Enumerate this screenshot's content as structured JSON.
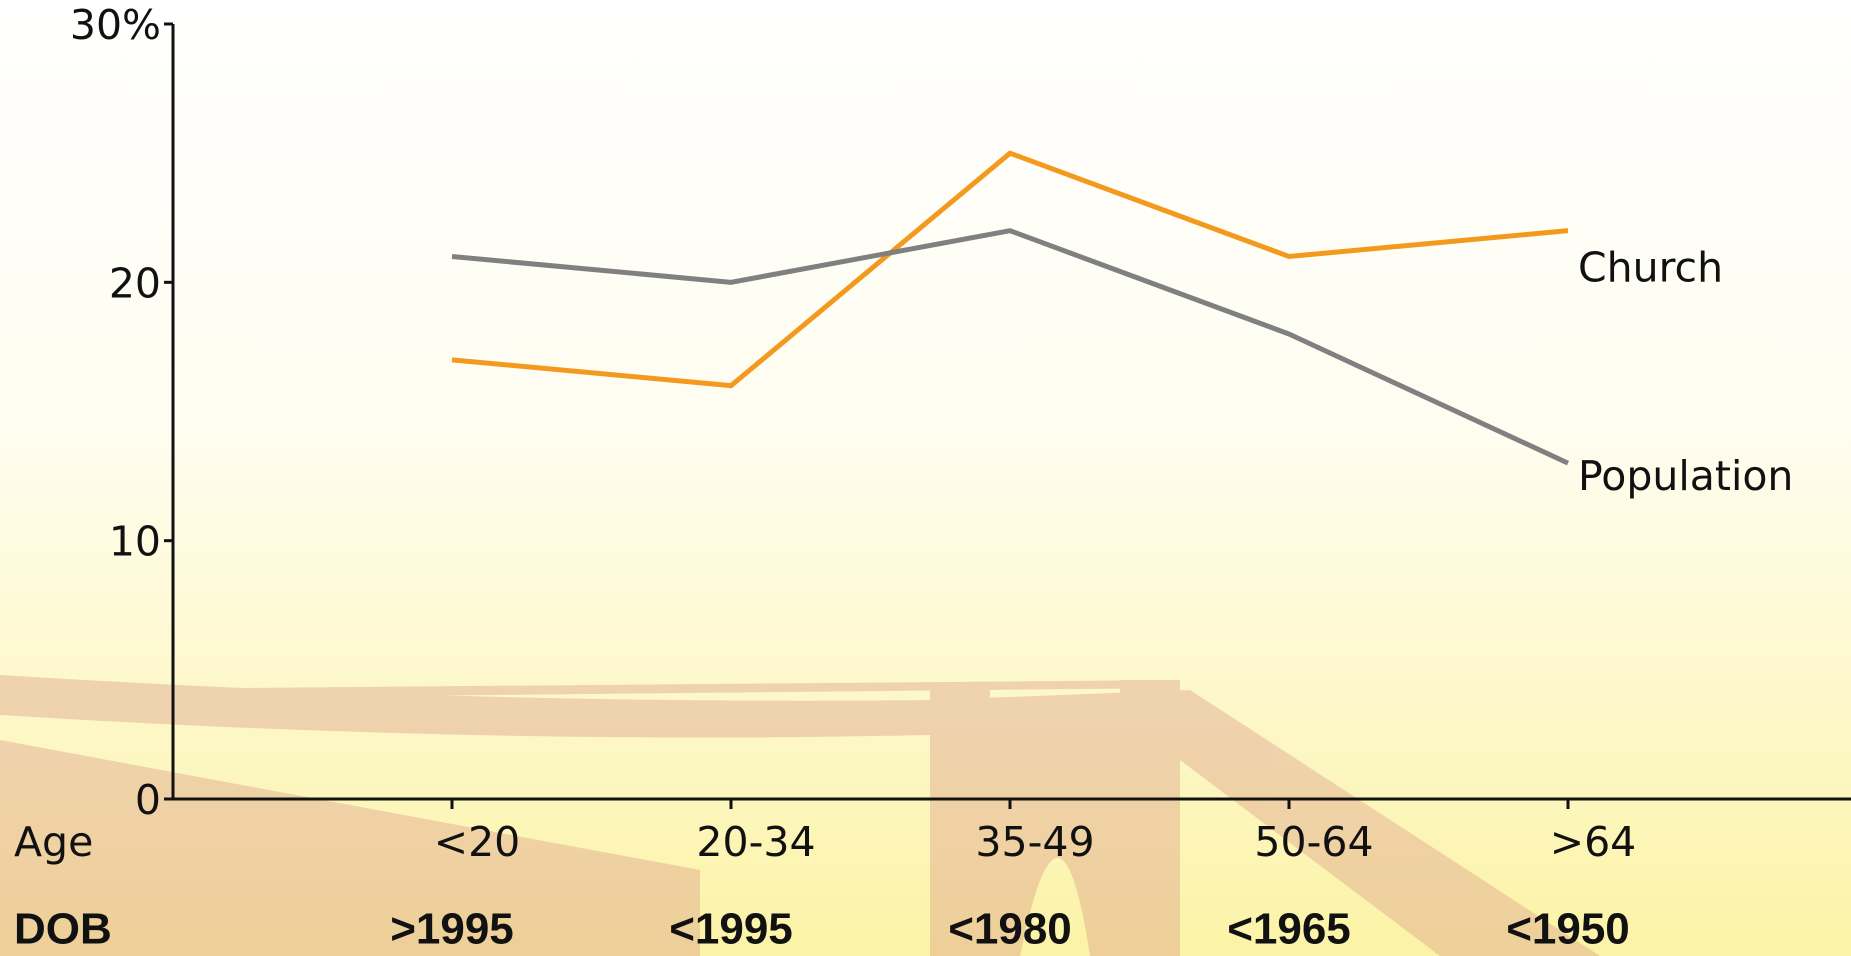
{
  "chart_data": {
    "type": "line",
    "categories": [
      "<20",
      "20-34",
      "35-49",
      "50-64",
      ">64"
    ],
    "x_label": "Age",
    "dob_label": "DOB",
    "dob": [
      ">1995",
      "<1995",
      "<1980",
      "<1965",
      "<1950"
    ],
    "series": [
      {
        "name": "Church",
        "color": "#f39a1e",
        "values": [
          17,
          16,
          25,
          21,
          22
        ]
      },
      {
        "name": "Population",
        "color": "#808080",
        "values": [
          21,
          20,
          22,
          18,
          13
        ]
      }
    ],
    "ylim": [
      0,
      30
    ],
    "yticks": [
      0,
      10,
      20,
      {
        "value": 30,
        "label": "30%"
      }
    ]
  }
}
